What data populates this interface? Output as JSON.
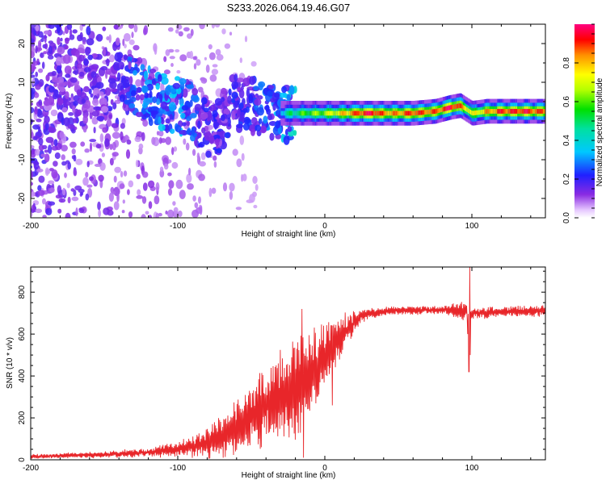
{
  "figure": {
    "title": "S233.2026.064.19.46.G07"
  },
  "chart_data": [
    {
      "type": "heatmap",
      "name": "spectrogram",
      "xlabel": "Height of straight line (km)",
      "ylabel": "Frequency (Hz)",
      "xlim": [
        -200,
        150
      ],
      "ylim": [
        -25,
        25
      ],
      "xticks": [
        -200,
        -100,
        0,
        100
      ],
      "yticks": [
        -20,
        -10,
        0,
        10,
        20
      ],
      "colorbar": {
        "label": "Normalized spectral amplitude",
        "range": [
          0,
          1
        ],
        "ticks": [
          "0.0",
          "0.2",
          "0.4",
          "0.6",
          "0.8"
        ]
      },
      "ridge": [
        {
          "x": -140,
          "f": 10,
          "amp": 0.22
        },
        {
          "x": -130,
          "f": 9,
          "amp": 0.35
        },
        {
          "x": -120,
          "f": 7,
          "amp": 0.38
        },
        {
          "x": -112,
          "f": 5,
          "amp": 0.4
        },
        {
          "x": -100,
          "f": 4,
          "amp": 0.42
        },
        {
          "x": -92,
          "f": 3,
          "amp": 0.35
        },
        {
          "x": -85,
          "f": 0,
          "amp": 0.3
        },
        {
          "x": -75,
          "f": -3,
          "amp": 0.25
        },
        {
          "x": -62,
          "f": 5,
          "amp": 0.28
        },
        {
          "x": -50,
          "f": 4,
          "amp": 0.3
        },
        {
          "x": -40,
          "f": 3,
          "amp": 0.35
        },
        {
          "x": -30,
          "f": 2,
          "amp": 0.4
        },
        {
          "x": -20,
          "f": 2,
          "amp": 0.5
        },
        {
          "x": -10,
          "f": 2,
          "amp": 0.6
        },
        {
          "x": 0,
          "f": 2,
          "amp": 0.65
        },
        {
          "x": 10,
          "f": 2,
          "amp": 0.75
        },
        {
          "x": 20,
          "f": 2,
          "amp": 0.85
        },
        {
          "x": 30,
          "f": 2,
          "amp": 0.95
        },
        {
          "x": 45,
          "f": 2,
          "amp": 0.8
        },
        {
          "x": 60,
          "f": 2,
          "amp": 0.9
        },
        {
          "x": 75,
          "f": 2.5,
          "amp": 0.85
        },
        {
          "x": 85,
          "f": 3.5,
          "amp": 0.95
        },
        {
          "x": 92,
          "f": 4,
          "amp": 0.85
        },
        {
          "x": 100,
          "f": 2,
          "amp": 0.7
        },
        {
          "x": 110,
          "f": 2.5,
          "amp": 0.8
        },
        {
          "x": 120,
          "f": 2.5,
          "amp": 0.9
        },
        {
          "x": 135,
          "f": 2.5,
          "amp": 0.92
        },
        {
          "x": 150,
          "f": 2.5,
          "amp": 0.85
        }
      ]
    },
    {
      "type": "line",
      "name": "snr",
      "xlabel": "Height of straight line (km)",
      "ylabel": "SNR (10 * v/v)",
      "xlim": [
        -200,
        150
      ],
      "ylim": [
        0,
        920
      ],
      "xticks": [
        -200,
        -100,
        0,
        100
      ],
      "yticks": [
        0,
        200,
        400,
        600,
        800
      ],
      "color": "#e8262a",
      "envelope": [
        {
          "x": -200,
          "mean": 15,
          "amp": 10
        },
        {
          "x": -150,
          "mean": 25,
          "amp": 15
        },
        {
          "x": -120,
          "mean": 35,
          "amp": 20
        },
        {
          "x": -100,
          "mean": 50,
          "amp": 35
        },
        {
          "x": -80,
          "mean": 80,
          "amp": 70
        },
        {
          "x": -60,
          "mean": 150,
          "amp": 120
        },
        {
          "x": -40,
          "mean": 250,
          "amp": 170
        },
        {
          "x": -25,
          "mean": 330,
          "amp": 220
        },
        {
          "x": -15,
          "mean": 380,
          "amp": 220
        },
        {
          "x": -5,
          "mean": 450,
          "amp": 180
        },
        {
          "x": 5,
          "mean": 540,
          "amp": 120
        },
        {
          "x": 15,
          "mean": 620,
          "amp": 80
        },
        {
          "x": 25,
          "mean": 690,
          "amp": 30
        },
        {
          "x": 40,
          "mean": 710,
          "amp": 20
        },
        {
          "x": 80,
          "mean": 715,
          "amp": 20
        },
        {
          "x": 95,
          "mean": 710,
          "amp": 40
        },
        {
          "x": 100,
          "mean": 700,
          "amp": 30
        },
        {
          "x": 120,
          "mean": 705,
          "amp": 25
        },
        {
          "x": 150,
          "mean": 710,
          "amp": 25
        }
      ],
      "spikes": [
        {
          "x": -15.5,
          "y": 720
        },
        {
          "x": -14.5,
          "y": 10
        },
        {
          "x": 5,
          "y": 260
        },
        {
          "x": 97,
          "y": 600
        },
        {
          "x": 98,
          "y": 420
        },
        {
          "x": 98.5,
          "y": 920
        },
        {
          "x": 99,
          "y": 500
        }
      ]
    }
  ]
}
